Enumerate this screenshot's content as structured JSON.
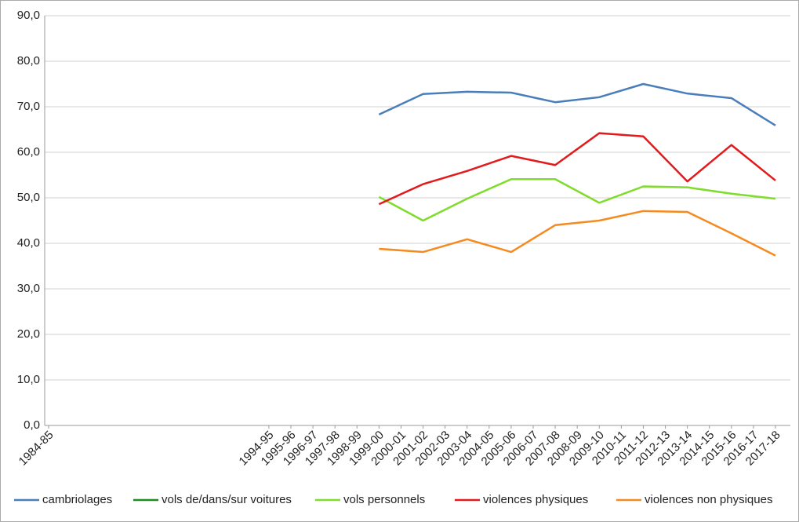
{
  "chart_data": {
    "type": "line",
    "x": [
      1999,
      2001,
      2003,
      2005,
      2007,
      2009,
      2011,
      2013,
      2015,
      2017
    ],
    "xlim": [
      1984,
      2017
    ],
    "xticks": [
      {
        "value": 1984,
        "label": "1984-85"
      },
      {
        "value": 1994,
        "label": "1994-95"
      },
      {
        "value": 1995,
        "label": "1995-96"
      },
      {
        "value": 1996,
        "label": "1996-97"
      },
      {
        "value": 1997,
        "label": "1997-98"
      },
      {
        "value": 1998,
        "label": "1998-99"
      },
      {
        "value": 1999,
        "label": "1999-00"
      },
      {
        "value": 2000,
        "label": "2000-01"
      },
      {
        "value": 2001,
        "label": "2001-02"
      },
      {
        "value": 2002,
        "label": "2002-03"
      },
      {
        "value": 2003,
        "label": "2003-04"
      },
      {
        "value": 2004,
        "label": "2004-05"
      },
      {
        "value": 2005,
        "label": "2005-06"
      },
      {
        "value": 2006,
        "label": "2006-07"
      },
      {
        "value": 2007,
        "label": "2007-08"
      },
      {
        "value": 2008,
        "label": "2008-09"
      },
      {
        "value": 2009,
        "label": "2009-10"
      },
      {
        "value": 2010,
        "label": "2010-11"
      },
      {
        "value": 2011,
        "label": "2011-12"
      },
      {
        "value": 2012,
        "label": "2012-13"
      },
      {
        "value": 2013,
        "label": "2013-14"
      },
      {
        "value": 2014,
        "label": "2014-15"
      },
      {
        "value": 2015,
        "label": "2015-16"
      },
      {
        "value": 2016,
        "label": "2016-17"
      },
      {
        "value": 2017,
        "label": "2017-18"
      }
    ],
    "ylim": [
      0,
      90
    ],
    "yticks": [
      {
        "value": 0,
        "label": "0,0"
      },
      {
        "value": 10,
        "label": "10,0"
      },
      {
        "value": 20,
        "label": "20,0"
      },
      {
        "value": 30,
        "label": "30,0"
      },
      {
        "value": 40,
        "label": "40,0"
      },
      {
        "value": 50,
        "label": "50,0"
      },
      {
        "value": 60,
        "label": "60,0"
      },
      {
        "value": 70,
        "label": "70,0"
      },
      {
        "value": 80,
        "label": "80,0"
      },
      {
        "value": 90,
        "label": "90,0"
      }
    ],
    "grid": true,
    "legend": "bottom",
    "series": [
      {
        "name": "cambriolages",
        "color": "#4a7ebb",
        "values": [
          68.3,
          72.8,
          73.3,
          73.1,
          71.0,
          72.1,
          75.0,
          72.9,
          71.9,
          65.9
        ]
      },
      {
        "name": "vols de/dans/sur voitures",
        "color": "#1f8c1f",
        "values": [
          null,
          null,
          null,
          null,
          null,
          null,
          null,
          null,
          null,
          null
        ]
      },
      {
        "name": "vols personnels",
        "color": "#7fdc2a",
        "values": [
          50.2,
          45.0,
          49.8,
          54.1,
          54.1,
          48.9,
          52.5,
          52.3,
          50.9,
          49.8
        ]
      },
      {
        "name": "violences physiques",
        "color": "#e31a1c",
        "values": [
          48.6,
          53.0,
          55.9,
          59.2,
          57.2,
          64.2,
          63.5,
          53.6,
          61.6,
          53.8
        ]
      },
      {
        "name": "violences non physiques",
        "color": "#f58a1f",
        "values": [
          38.8,
          38.1,
          40.9,
          38.1,
          44.0,
          45.0,
          47.1,
          46.9,
          42.2,
          37.3
        ]
      }
    ]
  }
}
